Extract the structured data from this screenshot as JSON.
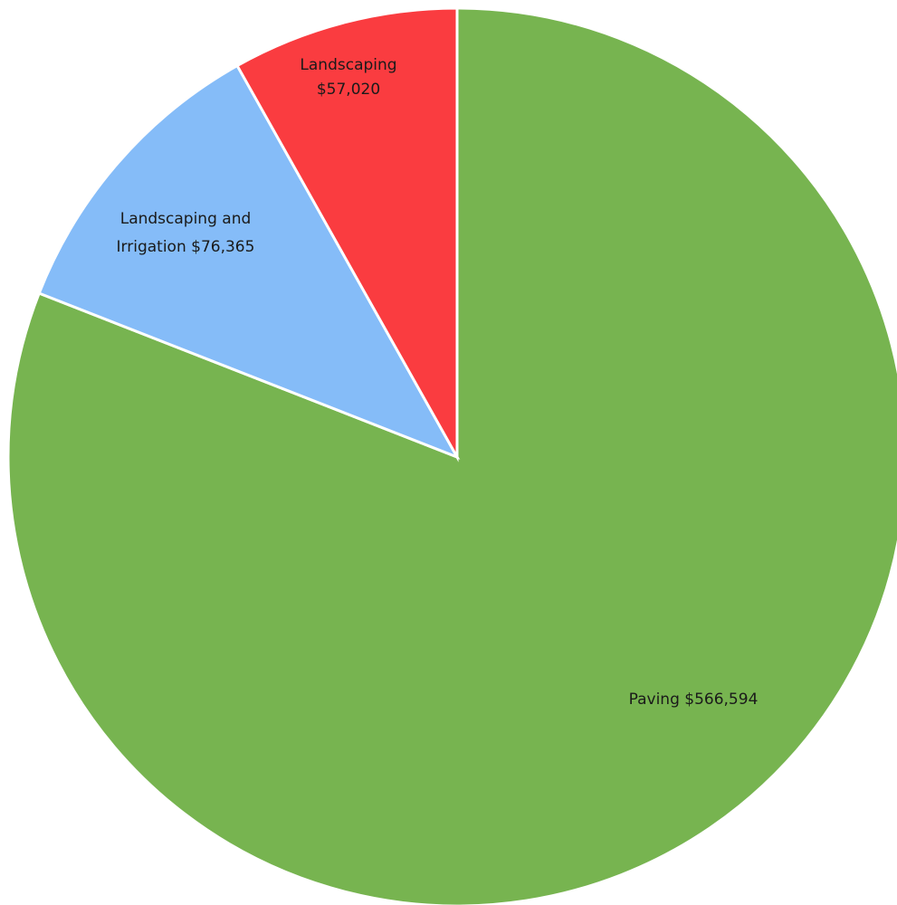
{
  "chart_data": {
    "type": "pie",
    "slices": [
      {
        "category": "Paving",
        "value": 566594,
        "value_label": "$566,594",
        "color": "#77b450"
      },
      {
        "category": "Landscaping and Irrigation",
        "value": 76365,
        "value_label": "$76,365",
        "color": "#85bcf8"
      },
      {
        "category": "Landscaping",
        "value": 57020,
        "value_label": "$57,020",
        "color": "#fa3c40"
      }
    ],
    "labels": [
      {
        "lines": [
          "Landscaping",
          "$57,020"
        ]
      },
      {
        "lines": [
          "Landscaping and",
          "Irrigation $76,365"
        ]
      },
      {
        "lines": [
          "Paving $566,594"
        ]
      }
    ],
    "start_angle": "12 o'clock",
    "direction": "clockwise",
    "legend": false
  }
}
